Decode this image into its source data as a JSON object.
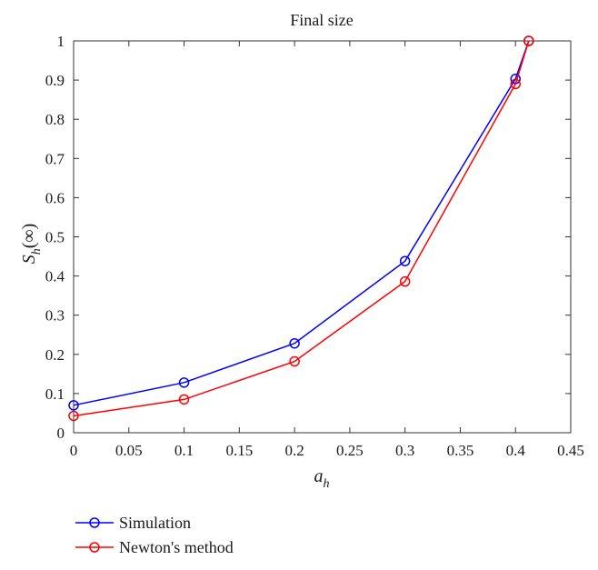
{
  "chart_data": {
    "type": "line",
    "title": "Final size",
    "xlabel": "a",
    "xlabel_sub": "h",
    "ylabel": "S",
    "ylabel_sub": "h",
    "ylabel_suffix": "(∞)",
    "xlim": [
      0,
      0.45
    ],
    "ylim": [
      0,
      1
    ],
    "xticks": [
      0,
      0.05,
      0.1,
      0.15,
      0.2,
      0.25,
      0.3,
      0.35,
      0.4,
      0.45
    ],
    "xtick_labels": [
      "0",
      "0.05",
      "0.1",
      "0.15",
      "0.2",
      "0.25",
      "0.3",
      "0.35",
      "0.4",
      "0.45"
    ],
    "yticks": [
      0,
      0.1,
      0.2,
      0.3,
      0.4,
      0.5,
      0.6,
      0.7,
      0.8,
      0.9,
      1
    ],
    "ytick_labels": [
      "0",
      "0.1",
      "0.2",
      "0.3",
      "0.4",
      "0.5",
      "0.6",
      "0.7",
      "0.8",
      "0.9",
      "1"
    ],
    "grid": false,
    "legend_position": "bottom-left, below plot",
    "series": [
      {
        "name": "Simulation",
        "color": "#0000ff",
        "marker": "circle",
        "x": [
          0,
          0.1,
          0.2,
          0.3,
          0.4,
          0.412
        ],
        "y": [
          0.07,
          0.128,
          0.228,
          0.438,
          0.903,
          1.0
        ]
      },
      {
        "name": "Newton's method",
        "color": "#ff0000",
        "marker": "circle",
        "x": [
          0,
          0.1,
          0.2,
          0.3,
          0.4,
          0.412
        ],
        "y": [
          0.043,
          0.085,
          0.182,
          0.386,
          0.89,
          1.0
        ]
      }
    ]
  }
}
